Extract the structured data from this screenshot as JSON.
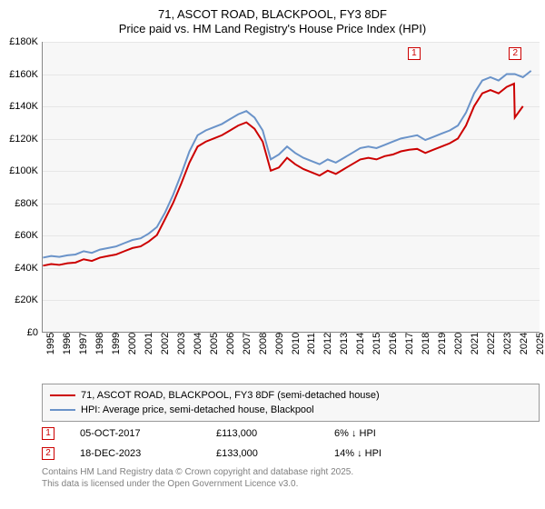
{
  "title": {
    "line1": "71, ASCOT ROAD, BLACKPOOL, FY3 8DF",
    "line2": "Price paid vs. HM Land Registry's House Price Index (HPI)"
  },
  "chart": {
    "type": "line",
    "background_color": "#f7f7f7",
    "grid_color": "#e6e6e6",
    "axis_color": "#888888",
    "x": {
      "min": 1995,
      "max": 2025.5,
      "ticks": [
        1995,
        1996,
        1997,
        1998,
        1999,
        2000,
        2001,
        2002,
        2003,
        2004,
        2005,
        2006,
        2007,
        2008,
        2009,
        2010,
        2011,
        2012,
        2013,
        2014,
        2015,
        2016,
        2017,
        2018,
        2019,
        2020,
        2021,
        2022,
        2023,
        2024,
        2025
      ],
      "tick_labels": [
        "1995",
        "1996",
        "1997",
        "1998",
        "1999",
        "2000",
        "2001",
        "2002",
        "2003",
        "2004",
        "2005",
        "2006",
        "2007",
        "2008",
        "2009",
        "2010",
        "2011",
        "2012",
        "2013",
        "2014",
        "2015",
        "2016",
        "2017",
        "2018",
        "2019",
        "2020",
        "2021",
        "2022",
        "2023",
        "2024",
        "2025"
      ],
      "fontsize": 11
    },
    "y": {
      "min": 0,
      "max": 180000,
      "ticks": [
        0,
        20000,
        40000,
        60000,
        80000,
        100000,
        120000,
        140000,
        160000,
        180000
      ],
      "tick_labels": [
        "£0",
        "£20K",
        "£40K",
        "£60K",
        "£80K",
        "£100K",
        "£120K",
        "£140K",
        "£160K",
        "£180K"
      ],
      "fontsize": 11
    },
    "series": [
      {
        "id": "price_paid",
        "label": "71, ASCOT ROAD, BLACKPOOL, FY3 8DF (semi-detached house)",
        "color": "#cc0000",
        "line_width": 2,
        "x": [
          1995,
          1995.5,
          1996,
          1996.5,
          1997,
          1997.5,
          1998,
          1998.5,
          1999,
          1999.5,
          2000,
          2000.5,
          2001,
          2001.5,
          2002,
          2002.5,
          2003,
          2003.5,
          2004,
          2004.5,
          2005,
          2005.5,
          2006,
          2006.5,
          2007,
          2007.5,
          2008,
          2008.5,
          2009,
          2009.5,
          2010,
          2010.5,
          2011,
          2011.5,
          2012,
          2012.5,
          2013,
          2013.5,
          2014,
          2014.5,
          2015,
          2015.5,
          2016,
          2016.5,
          2017,
          2017.5,
          2018,
          2018.5,
          2019,
          2019.5,
          2020,
          2020.5,
          2021,
          2021.5,
          2022,
          2022.5,
          2023,
          2023.5,
          2023.95,
          2024,
          2024.5
        ],
        "y": [
          41000,
          42000,
          41500,
          42500,
          43000,
          45000,
          44000,
          46000,
          47000,
          48000,
          50000,
          52000,
          53000,
          56000,
          60000,
          70000,
          80000,
          92000,
          105000,
          115000,
          118000,
          120000,
          122000,
          125000,
          128000,
          130000,
          126000,
          118000,
          100000,
          102000,
          108000,
          104000,
          101000,
          99000,
          97000,
          100000,
          98000,
          101000,
          104000,
          107000,
          108000,
          107000,
          109000,
          110000,
          112000,
          113000,
          113500,
          111000,
          113000,
          115000,
          117000,
          120000,
          128000,
          140000,
          148000,
          150000,
          148000,
          152000,
          154000,
          133000,
          140000
        ]
      },
      {
        "id": "hpi",
        "label": "HPI: Average price, semi-detached house, Blackpool",
        "color": "#6a93c9",
        "line_width": 2,
        "x": [
          1995,
          1995.5,
          1996,
          1996.5,
          1997,
          1997.5,
          1998,
          1998.5,
          1999,
          1999.5,
          2000,
          2000.5,
          2001,
          2001.5,
          2002,
          2002.5,
          2003,
          2003.5,
          2004,
          2004.5,
          2005,
          2005.5,
          2006,
          2006.5,
          2007,
          2007.5,
          2008,
          2008.5,
          2009,
          2009.5,
          2010,
          2010.5,
          2011,
          2011.5,
          2012,
          2012.5,
          2013,
          2013.5,
          2014,
          2014.5,
          2015,
          2015.5,
          2016,
          2016.5,
          2017,
          2017.5,
          2018,
          2018.5,
          2019,
          2019.5,
          2020,
          2020.5,
          2021,
          2021.5,
          2022,
          2022.5,
          2023,
          2023.5,
          2024,
          2024.5,
          2025
        ],
        "y": [
          46000,
          47000,
          46500,
          47500,
          48000,
          50000,
          49000,
          51000,
          52000,
          53000,
          55000,
          57000,
          58000,
          61000,
          65000,
          74000,
          85000,
          98000,
          112000,
          122000,
          125000,
          127000,
          129000,
          132000,
          135000,
          137000,
          133000,
          125000,
          107000,
          110000,
          115000,
          111000,
          108000,
          106000,
          104000,
          107000,
          105000,
          108000,
          111000,
          114000,
          115000,
          114000,
          116000,
          118000,
          120000,
          121000,
          122000,
          119000,
          121000,
          123000,
          125000,
          128000,
          136000,
          148000,
          156000,
          158000,
          156000,
          160000,
          160000,
          158000,
          162000
        ]
      }
    ],
    "markers": [
      {
        "id": "1",
        "x": 2017.76,
        "color": "#cc0000"
      },
      {
        "id": "2",
        "x": 2023.96,
        "color": "#cc0000"
      }
    ]
  },
  "legend": {
    "border_color": "#999999",
    "background": "#f7f7f7",
    "fontsize": 11
  },
  "events": [
    {
      "marker": "1",
      "date": "05-OCT-2017",
      "price": "£113,000",
      "pct": "6% ↓ HPI"
    },
    {
      "marker": "2",
      "date": "18-DEC-2023",
      "price": "£133,000",
      "pct": "14% ↓ HPI"
    }
  ],
  "footer": {
    "line1": "Contains HM Land Registry data © Crown copyright and database right 2025.",
    "line2": "This data is licensed under the Open Government Licence v3.0."
  }
}
